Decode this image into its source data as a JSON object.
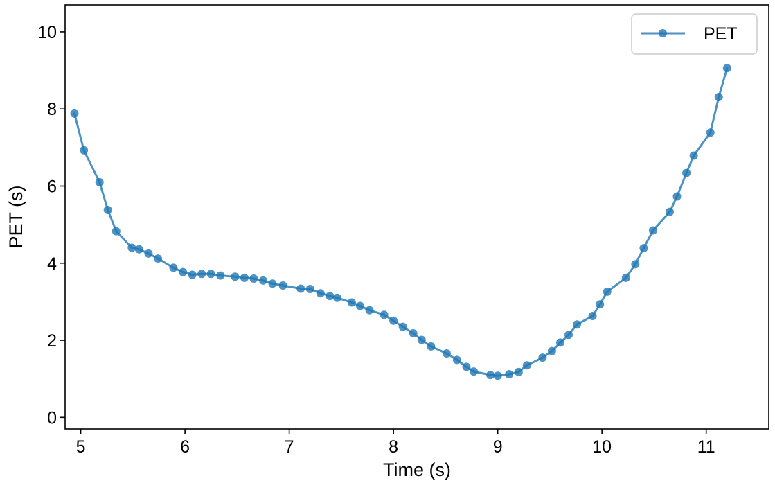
{
  "chart_data": {
    "type": "line",
    "title": "",
    "xlabel": "Time (s)",
    "ylabel": "PET (s)",
    "xlim": [
      4.85,
      11.6
    ],
    "ylim": [
      -0.3,
      10.7
    ],
    "xticks": [
      5,
      6,
      7,
      8,
      9,
      10,
      11
    ],
    "yticks": [
      0,
      2,
      4,
      6,
      8,
      10
    ],
    "grid": false,
    "legend": {
      "position": "top-right",
      "entries": [
        "PET"
      ]
    },
    "colors": {
      "series": "#1f77b4"
    },
    "series": [
      {
        "name": "PET",
        "marker": "circle",
        "x": [
          4.94,
          5.03,
          5.18,
          5.26,
          5.34,
          5.49,
          5.56,
          5.65,
          5.74,
          5.89,
          5.98,
          6.07,
          6.16,
          6.25,
          6.34,
          6.48,
          6.57,
          6.66,
          6.75,
          6.84,
          6.94,
          7.11,
          7.2,
          7.3,
          7.39,
          7.46,
          7.6,
          7.68,
          7.77,
          7.91,
          8.0,
          8.09,
          8.19,
          8.27,
          8.36,
          8.51,
          8.61,
          8.7,
          8.77,
          8.93,
          9.0,
          9.11,
          9.2,
          9.28,
          9.43,
          9.52,
          9.6,
          9.68,
          9.76,
          9.91,
          9.98,
          10.05,
          10.23,
          10.32,
          10.4,
          10.49,
          10.65,
          10.72,
          10.81,
          10.88,
          11.04,
          11.12,
          11.2
        ],
        "values": [
          7.88,
          6.93,
          6.1,
          5.38,
          4.83,
          4.4,
          4.36,
          4.25,
          4.12,
          3.88,
          3.77,
          3.7,
          3.72,
          3.72,
          3.68,
          3.65,
          3.62,
          3.6,
          3.55,
          3.47,
          3.42,
          3.34,
          3.33,
          3.22,
          3.15,
          3.1,
          2.98,
          2.89,
          2.78,
          2.66,
          2.51,
          2.35,
          2.18,
          2.01,
          1.84,
          1.66,
          1.49,
          1.31,
          1.19,
          1.1,
          1.08,
          1.12,
          1.18,
          1.35,
          1.55,
          1.72,
          1.94,
          2.14,
          2.41,
          2.63,
          2.93,
          3.26,
          3.62,
          3.97,
          4.39,
          4.85,
          5.33,
          5.73,
          6.34,
          6.79,
          7.39,
          8.31,
          9.06
        ]
      }
    ]
  }
}
